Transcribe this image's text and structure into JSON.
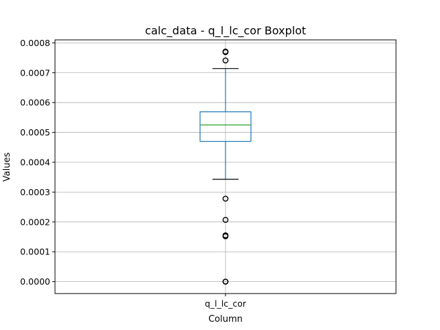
{
  "chart_data": {
    "type": "box",
    "title": "calc_data - q_l_lc_cor Boxplot",
    "xlabel": "Column",
    "ylabel": "Values",
    "categories": [
      "q_l_lc_cor"
    ],
    "ylim": [
      -4e-05,
      0.00081
    ],
    "yticks": [
      "0.0000",
      "0.0001",
      "0.0002",
      "0.0003",
      "0.0004",
      "0.0005",
      "0.0006",
      "0.0007",
      "0.0008"
    ],
    "grid": true,
    "boxes": [
      {
        "name": "q_l_lc_cor",
        "whisker_low": 0.000343,
        "q1": 0.00047,
        "median": 0.000525,
        "q3": 0.000569,
        "whisker_high": 0.000714,
        "outliers": [
          0.000771,
          0.000769,
          0.000741,
          0.000278,
          0.000207,
          0.000155,
          0.000152,
          0.0,
          0.0
        ]
      }
    ],
    "colors": {
      "box": "#1f77b4",
      "median": "#2ca02c",
      "whisker": "#1f77b4",
      "cap": "#000000",
      "outlier": "#000000",
      "grid": "#b0b0b0"
    }
  }
}
